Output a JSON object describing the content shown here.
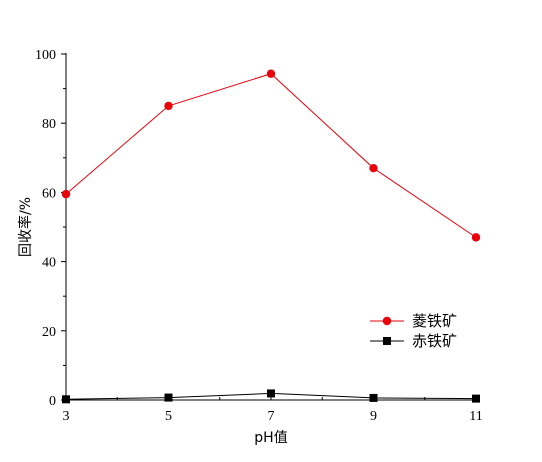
{
  "chart_data": {
    "type": "line",
    "title": "",
    "xlabel": "pH值",
    "ylabel": "回收率/%",
    "x": [
      3,
      5,
      7,
      9,
      11
    ],
    "xticks": [
      "3",
      "5",
      "7",
      "9",
      "11"
    ],
    "yticks": [
      "0",
      "20",
      "40",
      "60",
      "80",
      "100"
    ],
    "xlim": [
      3,
      11
    ],
    "ylim": [
      0,
      100
    ],
    "grid": false,
    "legend_position": "bottom-right",
    "series": [
      {
        "name": "菱铁矿",
        "values": [
          59.5,
          85,
          94.3,
          67,
          47
        ],
        "color": "#e8000b",
        "marker": "circle"
      },
      {
        "name": "赤铁矿",
        "values": [
          0.2,
          0.7,
          1.9,
          0.6,
          0.4
        ],
        "color": "#000000",
        "marker": "square"
      }
    ]
  }
}
